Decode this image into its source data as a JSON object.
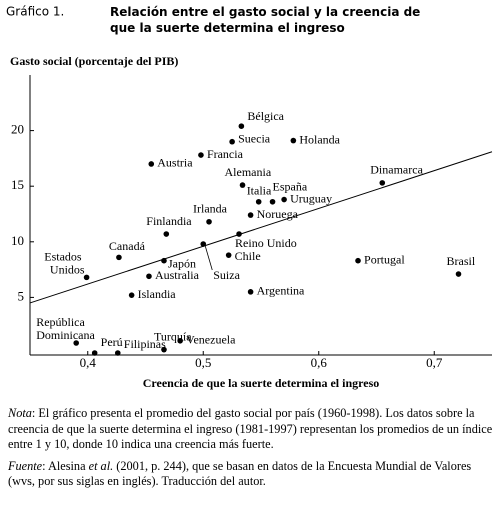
{
  "chart_data": {
    "type": "scatter",
    "figure_label": "Gráfico 1.",
    "title": "Relación entre el gasto social y la creencia de que la suerte determina el ingreso",
    "ylabel": "Gasto social (porcentaje del PIB)",
    "xlabel": "Creencia de que la suerte determina el ingreso",
    "xlim": [
      0.35,
      0.75
    ],
    "ylim": [
      0,
      25
    ],
    "xticks": [
      {
        "value": 0.4,
        "label": "0,4"
      },
      {
        "value": 0.5,
        "label": "0,5"
      },
      {
        "value": 0.6,
        "label": "0,6"
      },
      {
        "value": 0.7,
        "label": "0,7"
      }
    ],
    "yticks": [
      5,
      10,
      15,
      20
    ],
    "color": "#000000",
    "labels": [
      "Bélgica",
      "Suecia",
      "Holanda",
      "Francia",
      "Austria",
      "Alemania",
      "España",
      "Italia",
      "Uruguay",
      "Dinamarca",
      "Noruega",
      "Irlanda",
      "Finlandia",
      "Reino Unido",
      "Suiza",
      "Canadá",
      "Chile",
      "Portugal",
      "Brasil",
      "Japón",
      "Estados Unidos",
      "Australia",
      "Islandia",
      "Argentina",
      "República Dominicana",
      "Perú",
      "Filipinas",
      "Turquía",
      "Venezuela"
    ],
    "x": [
      0.533,
      0.525,
      0.578,
      0.498,
      0.455,
      0.534,
      0.56,
      0.548,
      0.57,
      0.655,
      0.541,
      0.505,
      0.468,
      0.531,
      0.5,
      0.427,
      0.522,
      0.634,
      0.721,
      0.466,
      0.399,
      0.453,
      0.438,
      0.541,
      0.39,
      0.406,
      0.426,
      0.466,
      0.48
    ],
    "y": [
      20.4,
      19.0,
      19.1,
      17.8,
      17.0,
      15.1,
      13.6,
      13.6,
      13.8,
      15.3,
      12.4,
      11.8,
      10.7,
      10.7,
      9.8,
      8.6,
      8.8,
      8.3,
      7.1,
      8.3,
      6.8,
      6.9,
      5.2,
      5.5,
      0.9,
      0.0,
      0.0,
      0.3,
      1.1
    ],
    "trend_line": {
      "x": [
        0.35,
        0.75
      ],
      "y": [
        4.5,
        18.1
      ]
    }
  },
  "notes": {
    "nota_label": "Nota",
    "nota_text": ": El gráfico presenta el promedio del gasto social por país (1960-1998). Los datos sobre la creencia de que la suerte determina el ingreso (1981-1997) representan los promedios de un índice entre 1 y 10, donde 10 indica una creencia más fuerte.",
    "fuente_label": "Fuente",
    "fuente_text_1": ": Alesina ",
    "fuente_italic": "et al.",
    "fuente_text_2": " (2001, p. 244), que se basan en datos de la Encuesta Mundial de Valores (wvs, por sus siglas en inglés). Traducción del autor."
  }
}
